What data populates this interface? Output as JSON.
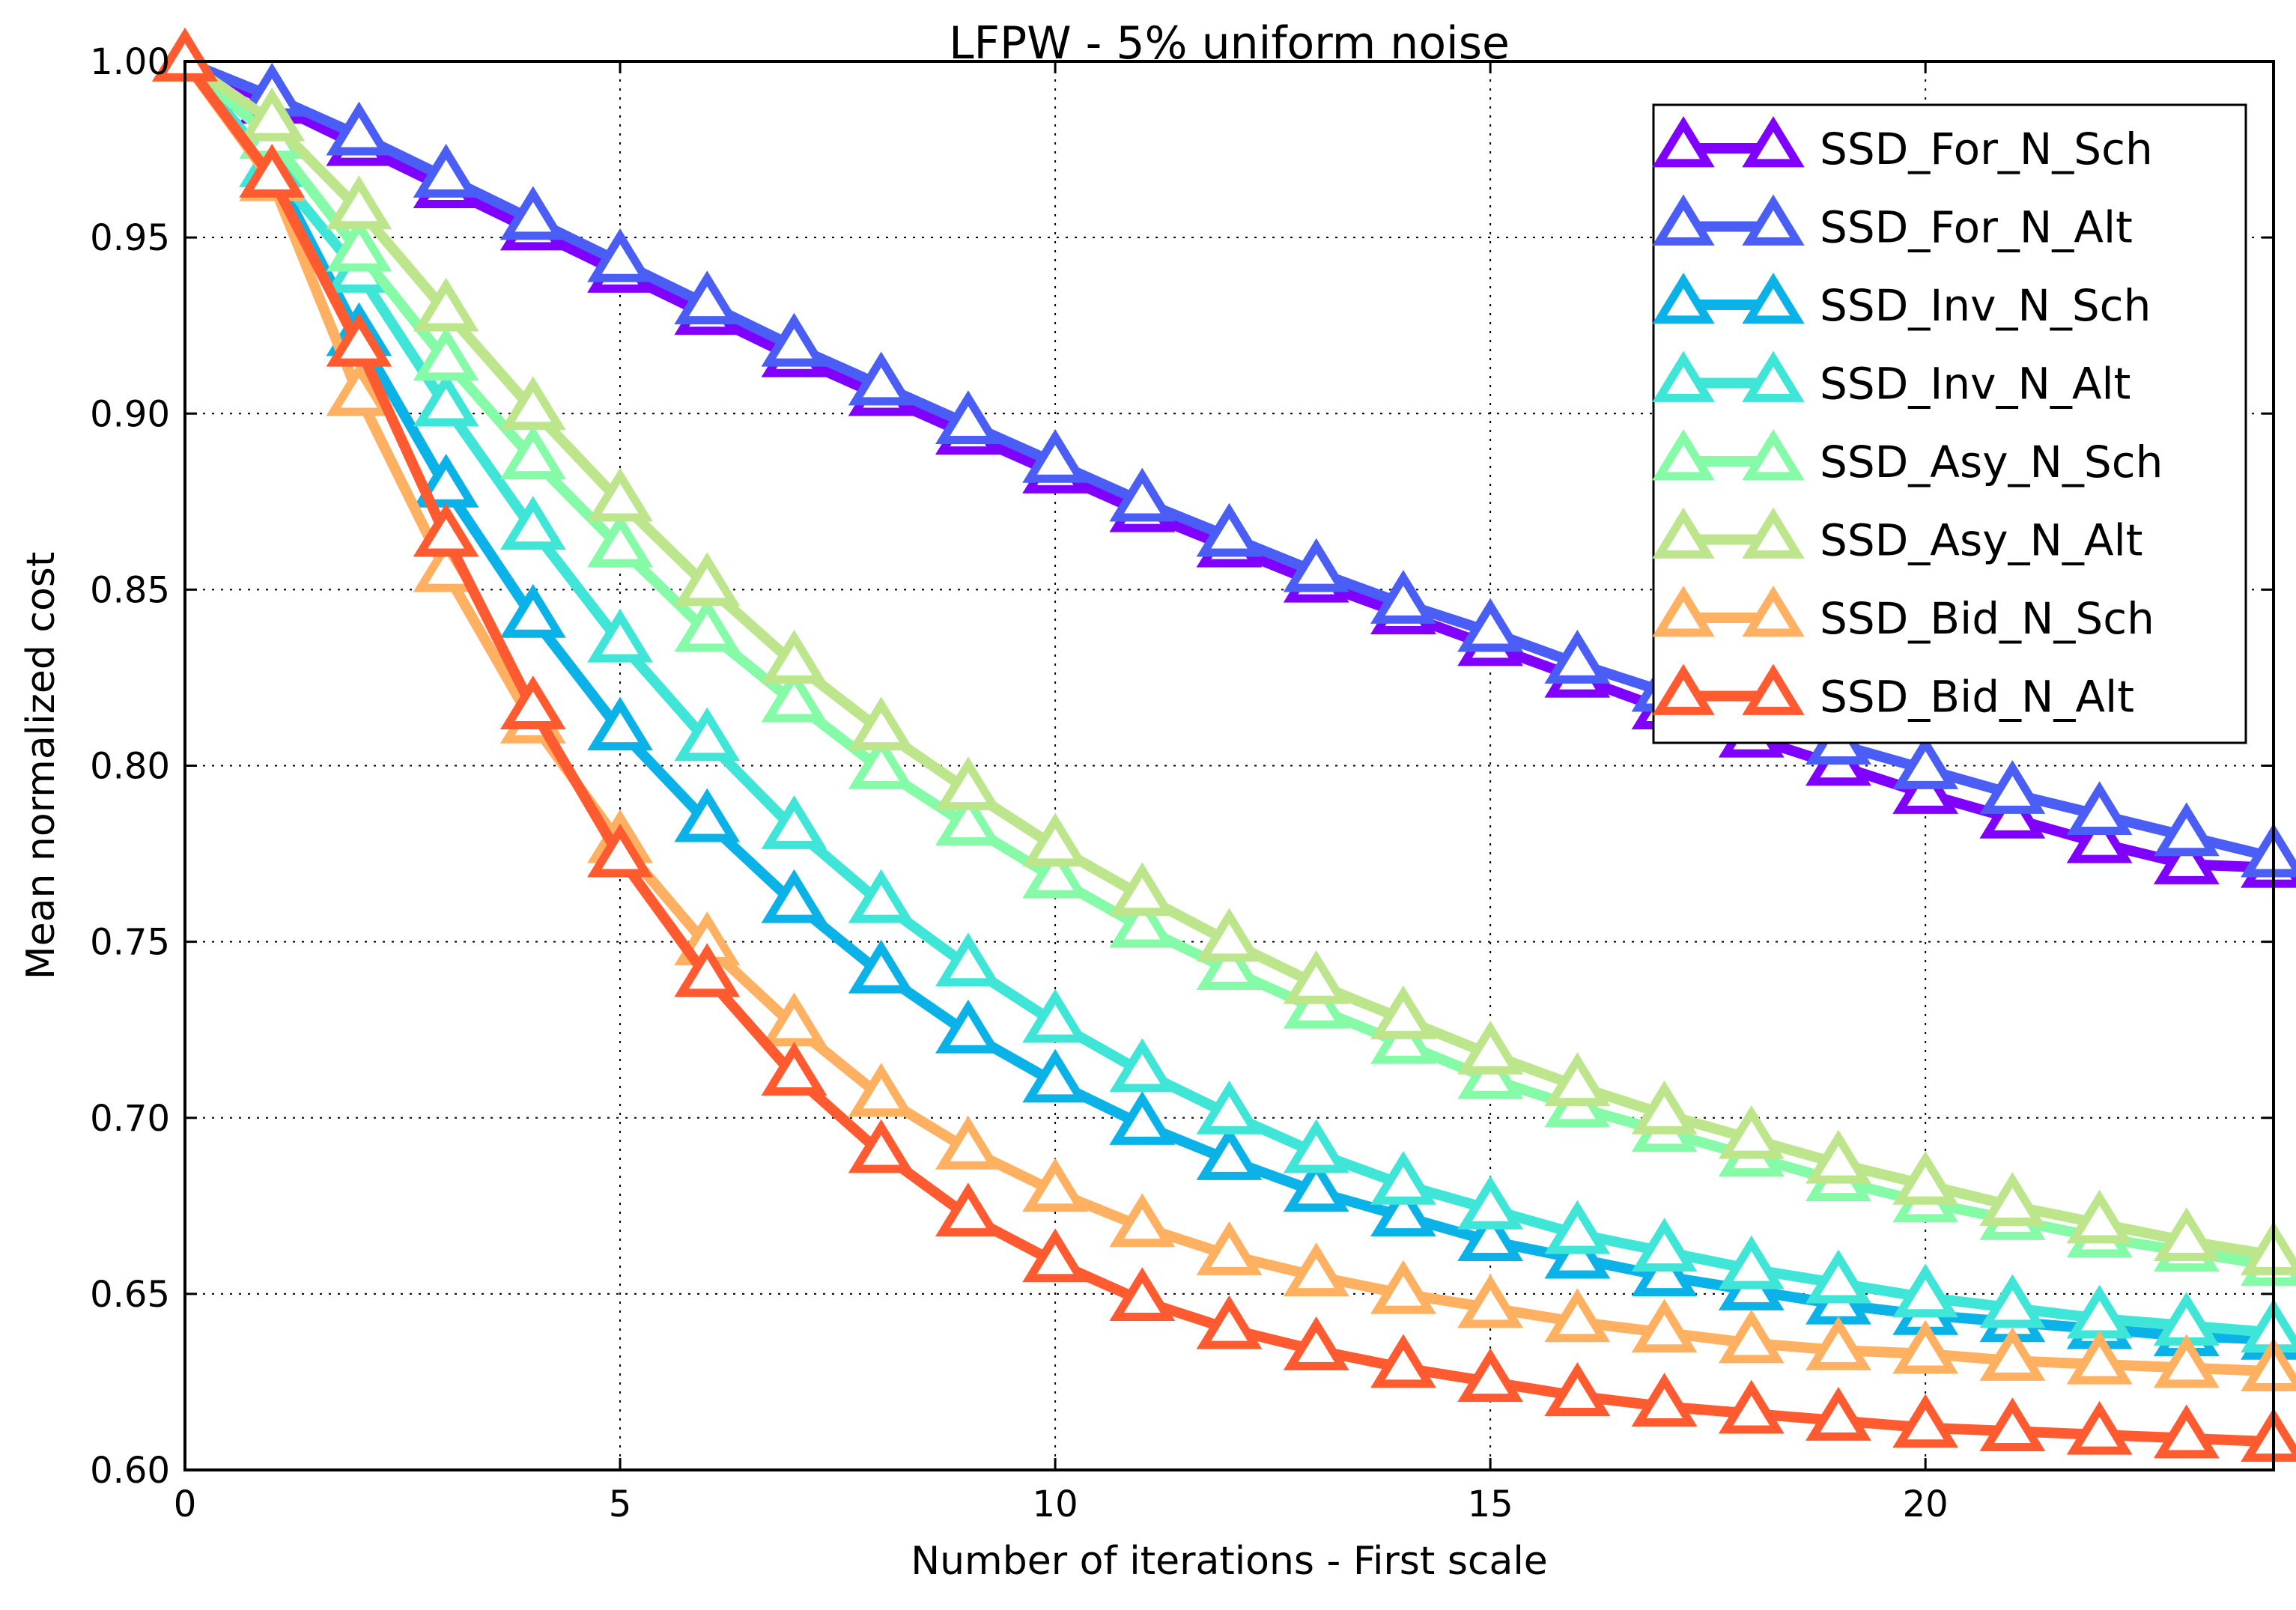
{
  "chart_data": {
    "type": "line",
    "title": "LFPW - 5% uniform noise",
    "xlabel": "Number of iterations - First scale",
    "ylabel": "Mean normalized cost",
    "xlim": [
      0,
      24
    ],
    "ylim": [
      0.6,
      1.0
    ],
    "xticks": [
      0,
      5,
      10,
      15,
      20
    ],
    "xtick_labels": [
      "0",
      "5",
      "10",
      "15",
      "20"
    ],
    "yticks": [
      0.6,
      0.65,
      0.7,
      0.75,
      0.8,
      0.85,
      0.9,
      0.95,
      1.0
    ],
    "ytick_labels": [
      "0.60",
      "0.65",
      "0.70",
      "0.75",
      "0.80",
      "0.85",
      "0.90",
      "0.95",
      "1.00"
    ],
    "grid": true,
    "legend_position": "top-right",
    "marker": "triangle-up",
    "x": [
      0,
      1,
      2,
      3,
      4,
      5,
      6,
      7,
      8,
      9,
      10,
      11,
      12,
      13,
      14,
      15,
      16,
      17,
      18,
      19,
      20,
      21,
      22,
      23,
      24
    ],
    "series": [
      {
        "name": "SSD_For_N_Sch",
        "color": "#7f00ff",
        "values": [
          1.0,
          0.988,
          0.976,
          0.964,
          0.952,
          0.94,
          0.928,
          0.916,
          0.905,
          0.894,
          0.883,
          0.872,
          0.862,
          0.852,
          0.843,
          0.834,
          0.825,
          0.816,
          0.808,
          0.8,
          0.792,
          0.785,
          0.778,
          0.772,
          0.771
        ]
      },
      {
        "name": "SSD_For_N_Alt",
        "color": "#4a5ef5",
        "values": [
          1.0,
          0.99,
          0.979,
          0.967,
          0.955,
          0.943,
          0.931,
          0.919,
          0.908,
          0.897,
          0.886,
          0.875,
          0.865,
          0.855,
          0.846,
          0.838,
          0.829,
          0.821,
          0.813,
          0.806,
          0.799,
          0.792,
          0.786,
          0.78,
          0.774
        ]
      },
      {
        "name": "SSD_Inv_N_Sch",
        "color": "#0bb2e8",
        "values": [
          1.0,
          0.97,
          0.922,
          0.879,
          0.842,
          0.81,
          0.784,
          0.761,
          0.741,
          0.724,
          0.71,
          0.698,
          0.688,
          0.679,
          0.672,
          0.665,
          0.66,
          0.655,
          0.651,
          0.647,
          0.644,
          0.642,
          0.64,
          0.638,
          0.637
        ]
      },
      {
        "name": "SSD_Inv_N_Alt",
        "color": "#3fe6d8",
        "values": [
          1.0,
          0.97,
          0.94,
          0.902,
          0.867,
          0.835,
          0.807,
          0.782,
          0.761,
          0.743,
          0.727,
          0.713,
          0.701,
          0.69,
          0.681,
          0.674,
          0.667,
          0.662,
          0.657,
          0.653,
          0.649,
          0.646,
          0.643,
          0.641,
          0.639
        ]
      },
      {
        "name": "SSD_Asy_N_Sch",
        "color": "#85fba8",
        "values": [
          1.0,
          0.978,
          0.946,
          0.915,
          0.887,
          0.862,
          0.838,
          0.818,
          0.799,
          0.783,
          0.768,
          0.754,
          0.742,
          0.731,
          0.721,
          0.711,
          0.703,
          0.696,
          0.689,
          0.682,
          0.676,
          0.671,
          0.666,
          0.662,
          0.658
        ]
      },
      {
        "name": "SSD_Asy_N_Alt",
        "color": "#bce58c",
        "values": [
          1.0,
          0.983,
          0.958,
          0.929,
          0.901,
          0.875,
          0.851,
          0.829,
          0.81,
          0.793,
          0.777,
          0.763,
          0.75,
          0.738,
          0.728,
          0.718,
          0.709,
          0.701,
          0.694,
          0.687,
          0.681,
          0.675,
          0.67,
          0.665,
          0.661
        ]
      },
      {
        "name": "SSD_Bid_N_Sch",
        "color": "#ffb060",
        "values": [
          1.0,
          0.966,
          0.905,
          0.855,
          0.812,
          0.778,
          0.749,
          0.726,
          0.706,
          0.691,
          0.679,
          0.669,
          0.661,
          0.655,
          0.65,
          0.646,
          0.642,
          0.639,
          0.636,
          0.634,
          0.633,
          0.631,
          0.63,
          0.629,
          0.628
        ]
      },
      {
        "name": "SSD_Bid_N_Alt",
        "color": "#ff5a30",
        "values": [
          1.0,
          0.967,
          0.919,
          0.865,
          0.816,
          0.774,
          0.74,
          0.712,
          0.69,
          0.672,
          0.659,
          0.648,
          0.64,
          0.634,
          0.629,
          0.625,
          0.621,
          0.618,
          0.616,
          0.614,
          0.612,
          0.611,
          0.61,
          0.609,
          0.608
        ]
      }
    ]
  }
}
